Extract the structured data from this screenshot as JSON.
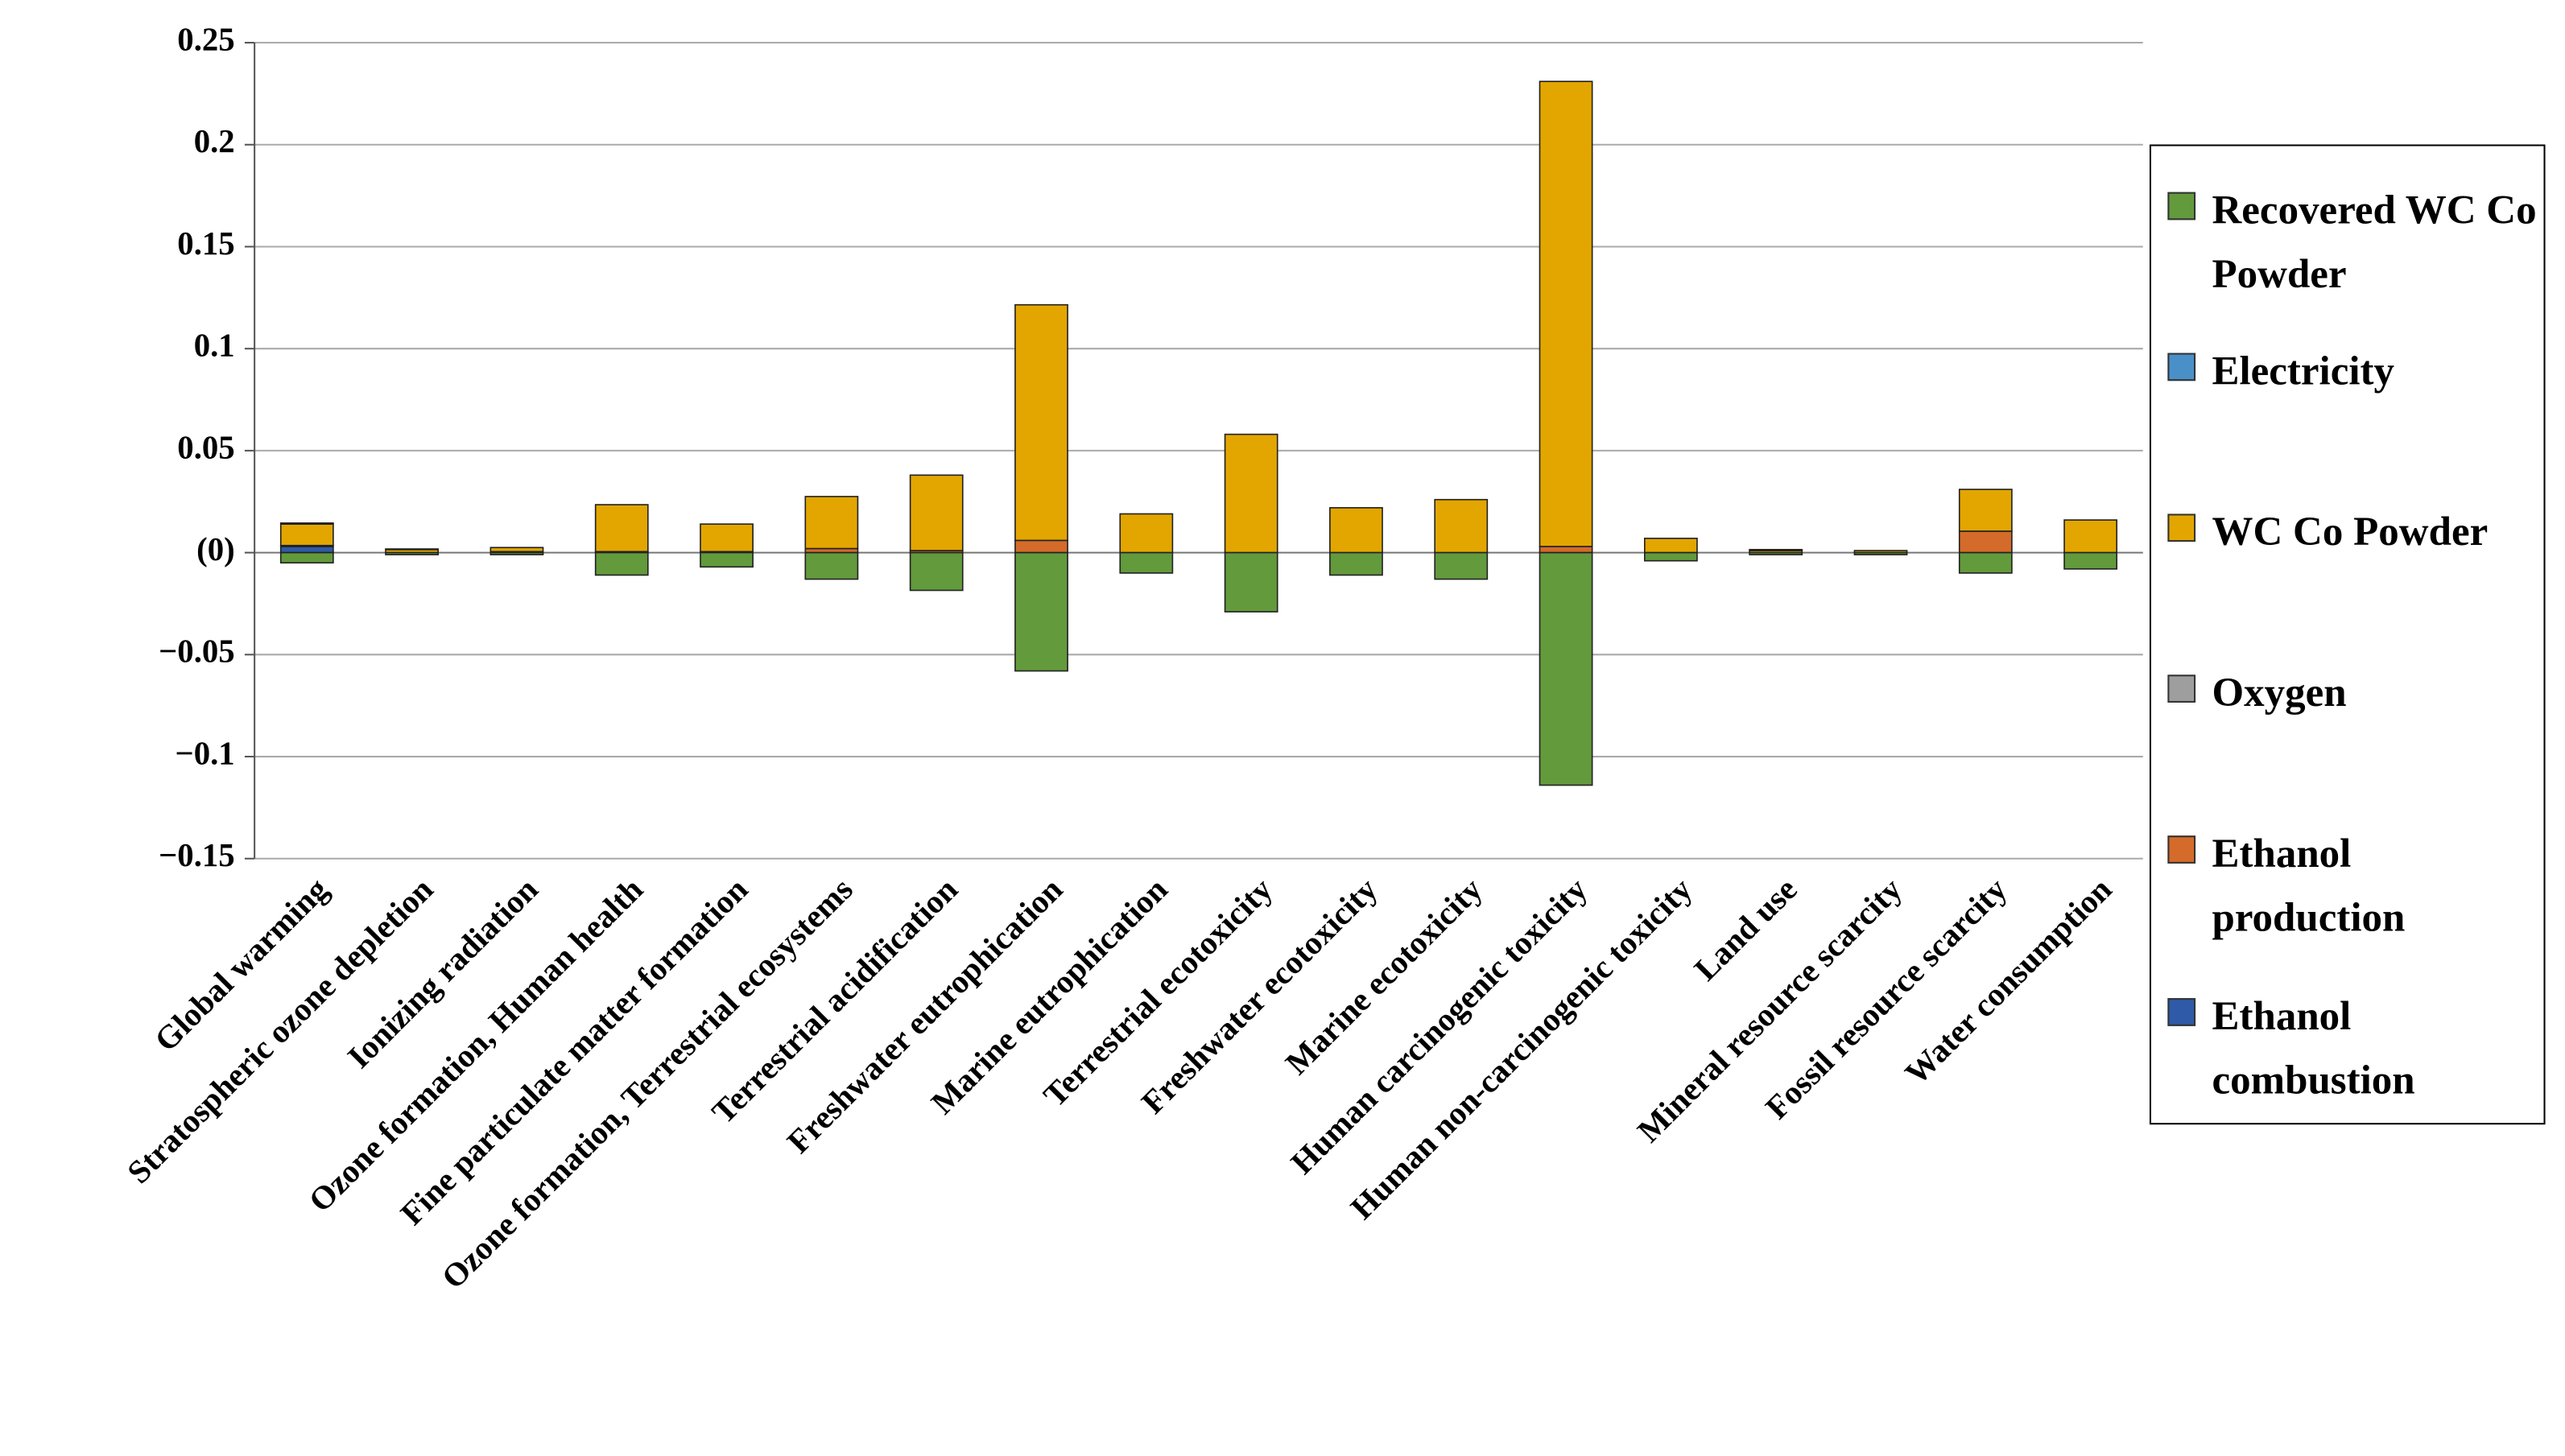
{
  "chart_data": {
    "type": "stacked_bar",
    "categories": [
      "Global warming",
      "Stratospheric ozone depletion",
      "Ionizing radiation",
      "Ozone formation, Human health",
      "Fine particulate matter formation",
      "Ozone formation, Terrestrial ecosystems",
      "Terrestrial acidification",
      "Freshwater eutrophication",
      "Marine eutrophication",
      "Terrestrial ecotoxicity",
      "Freshwater ecotoxicity",
      "Marine ecotoxicity",
      "Human carcinogenic toxicity",
      "Human non-carcinogenic toxicity",
      "Land use",
      "Mineral resource scarcity",
      "Fossil resource scarcity",
      "Water consumption"
    ],
    "series": [
      {
        "name": "Recovered WC Co Powder",
        "color": "#629a3c",
        "values": [
          -0.005,
          -0.001,
          -0.001,
          -0.011,
          -0.007,
          -0.013,
          -0.0185,
          -0.058,
          -0.01,
          -0.029,
          -0.011,
          -0.013,
          -0.114,
          -0.004,
          -0.001,
          -0.001,
          -0.01,
          -0.008
        ]
      },
      {
        "name": "Electricity",
        "color": "#4a90c8",
        "values": [
          0.0005,
          0.0003,
          0,
          0,
          0,
          0,
          0,
          0,
          0,
          0,
          0,
          0,
          0,
          0,
          0.0005,
          0,
          0,
          0
        ]
      },
      {
        "name": "WC Co Powder",
        "color": "#e3a600",
        "values": [
          0.0105,
          0.0015,
          0.002,
          0.023,
          0.0135,
          0.0255,
          0.037,
          0.1155,
          0.019,
          0.058,
          0.022,
          0.026,
          0.228,
          0.007,
          0.001,
          0.001,
          0.0205,
          0.016
        ]
      },
      {
        "name": "Oxygen",
        "color": "#9e9e9e",
        "values": [
          0,
          0,
          0,
          0,
          0,
          0,
          0,
          0,
          0,
          0,
          0,
          0,
          0,
          0,
          0,
          0,
          0,
          0
        ]
      },
      {
        "name": "Ethanol production",
        "color": "#d46b2a",
        "values": [
          0.0005,
          0,
          0.0005,
          0.0005,
          0.0005,
          0.002,
          0.001,
          0.006,
          0,
          0,
          0,
          0,
          0.003,
          0,
          0,
          0,
          0.0105,
          0
        ]
      },
      {
        "name": "Ethanol combustion",
        "color": "#2e5aa8",
        "values": [
          0.003,
          0,
          0,
          0,
          0,
          0,
          0,
          0,
          0,
          0,
          0,
          0,
          0,
          0,
          0,
          0,
          0,
          0
        ]
      }
    ],
    "ylim": [
      -0.15,
      0.25
    ],
    "yticks": [
      {
        "value": -0.15,
        "label": "−0.15"
      },
      {
        "value": -0.1,
        "label": "−0.1"
      },
      {
        "value": -0.05,
        "label": "−0.05"
      },
      {
        "value": 0,
        "label": "(0)"
      },
      0.05,
      0.1,
      0.15,
      0.2,
      0.25
    ],
    "grid": true,
    "legend": "right"
  }
}
